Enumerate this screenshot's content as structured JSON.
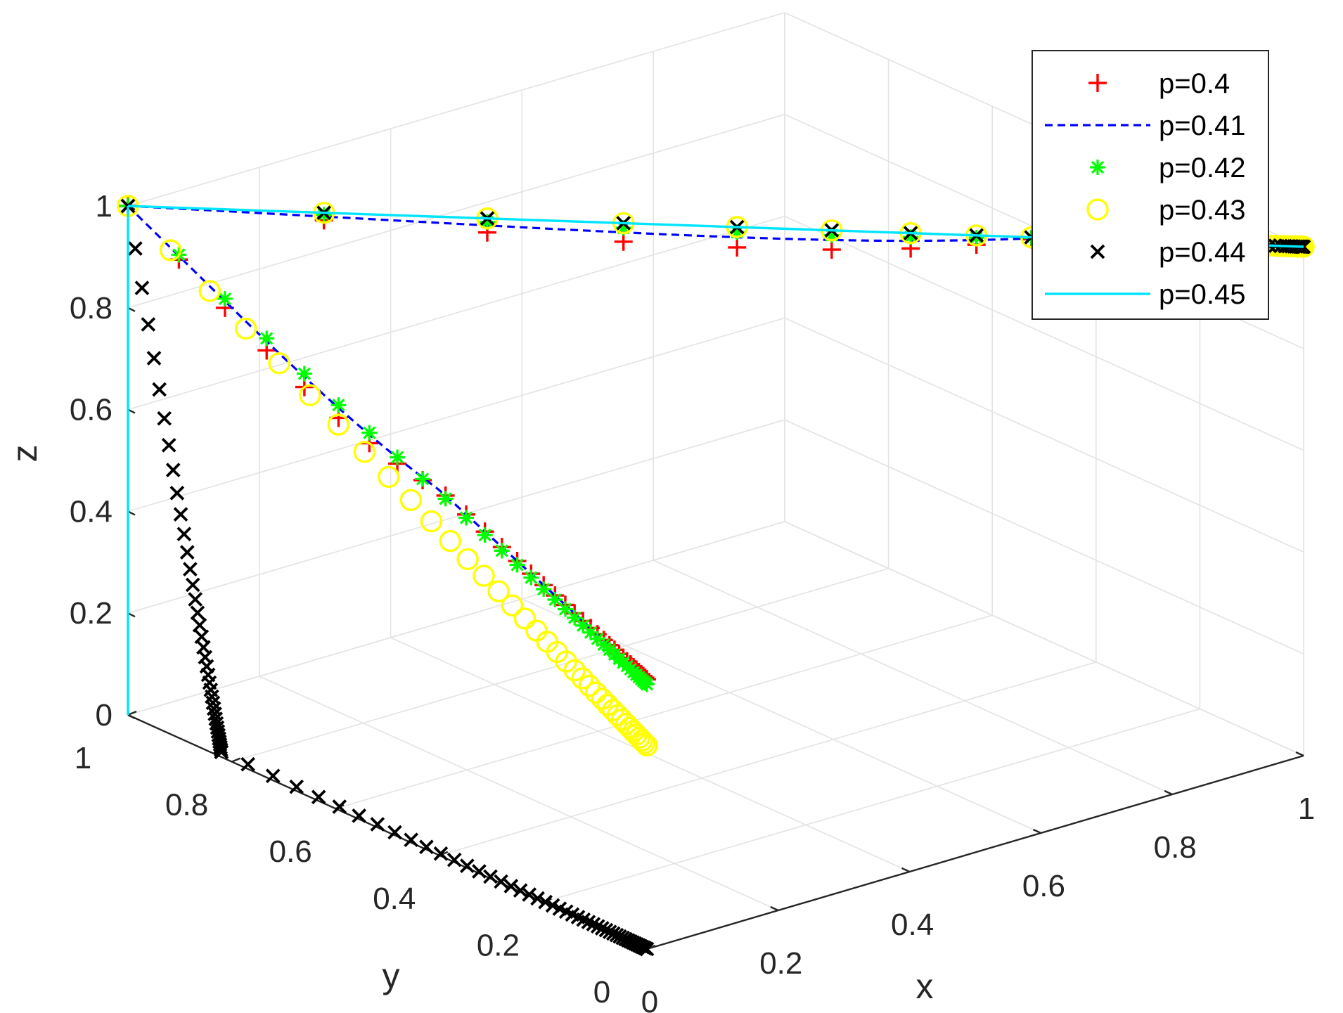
{
  "chart_data": {
    "type": "line3d",
    "title": "",
    "xlabel": "x",
    "ylabel": "y",
    "zlabel": "z",
    "xlim": [
      0,
      1
    ],
    "ylim": [
      0,
      1
    ],
    "zlim": [
      0,
      1
    ],
    "xticks": [
      {
        "v": 0,
        "label": "0"
      },
      {
        "v": 0.2,
        "label": "0.2"
      },
      {
        "v": 0.4,
        "label": "0.4"
      },
      {
        "v": 0.6,
        "label": "0.6"
      },
      {
        "v": 0.8,
        "label": "0.8"
      },
      {
        "v": 1,
        "label": "1"
      }
    ],
    "yticks": [
      {
        "v": 0,
        "label": "0"
      },
      {
        "v": 0.2,
        "label": "0.2"
      },
      {
        "v": 0.4,
        "label": "0.4"
      },
      {
        "v": 0.6,
        "label": "0.6"
      },
      {
        "v": 0.8,
        "label": "0.8"
      },
      {
        "v": 1,
        "label": "1"
      }
    ],
    "zticks": [
      {
        "v": 0,
        "label": "0"
      },
      {
        "v": 0.2,
        "label": "0.2"
      },
      {
        "v": 0.4,
        "label": "0.4"
      },
      {
        "v": 0.6,
        "label": "0.6"
      },
      {
        "v": 0.8,
        "label": "0.8"
      },
      {
        "v": 1,
        "label": "1"
      }
    ],
    "grid": true,
    "legend_position": "top-right",
    "series": [
      {
        "name": "p=0.4",
        "color": "#ff0000",
        "marker": "plus",
        "line": "none",
        "paths": [
          {
            "start": [
              0,
              1,
              1
            ],
            "end": [
              1,
              0,
              1
            ],
            "n": 34,
            "k": 6,
            "dip": 0.04
          },
          {
            "start": [
              0,
              1,
              1
            ],
            "end": [
              0,
              0,
              0.53
            ],
            "n": 36,
            "k": 3.5,
            "dip": 0.04
          }
        ]
      },
      {
        "name": "p=0.41",
        "color": "#0000ff",
        "marker": "none",
        "line": "dashed",
        "paths": [
          {
            "start": [
              0,
              1,
              1
            ],
            "end": [
              1,
              0,
              1
            ],
            "n": 90,
            "k": 6,
            "dip": 0.02
          },
          {
            "start": [
              0,
              1,
              1
            ],
            "end": [
              0,
              0,
              0.53
            ],
            "n": 90,
            "k": 3.5,
            "dip": 0.02
          }
        ]
      },
      {
        "name": "p=0.42",
        "color": "#00ff00",
        "marker": "asterisk",
        "line": "none",
        "paths": [
          {
            "start": [
              0,
              1,
              1
            ],
            "end": [
              1,
              0,
              1
            ],
            "n": 34,
            "k": 6,
            "dip": 0.01
          },
          {
            "start": [
              0,
              1,
              1
            ],
            "end": [
              0,
              0,
              0.52
            ],
            "n": 36,
            "k": 3.5,
            "dip": 0.01
          }
        ]
      },
      {
        "name": "p=0.43",
        "color": "#ffff00",
        "marker": "circle",
        "line": "none",
        "paths": [
          {
            "start": [
              0,
              1,
              1
            ],
            "end": [
              1,
              0,
              1
            ],
            "n": 34,
            "k": 6,
            "dip": 0
          },
          {
            "start": [
              0,
              1,
              1
            ],
            "end": [
              0,
              0,
              0.4
            ],
            "n": 38,
            "k": 3,
            "dip": 0
          }
        ]
      },
      {
        "name": "p=0.44",
        "color": "#000000",
        "marker": "x",
        "line": "none",
        "paths": [
          {
            "start": [
              0,
              1,
              1
            ],
            "end": [
              1,
              0,
              1
            ],
            "n": 34,
            "k": 6,
            "dip": 0
          },
          {
            "start": [
              0,
              1,
              1
            ],
            "end": [
              0,
              0.82,
              0.01
            ],
            "n": 40,
            "k": 3,
            "dip": 0
          },
          {
            "start": [
              0,
              0.82,
              0.01
            ],
            "end": [
              0,
              0,
              0
            ],
            "n": 50,
            "k": 3,
            "dip": 0
          }
        ]
      },
      {
        "name": "p=0.45",
        "color": "#00e5ff",
        "marker": "none",
        "line": "solid",
        "paths": [
          {
            "start": [
              0,
              1,
              1
            ],
            "end": [
              1,
              0,
              1
            ],
            "n": 2,
            "k": 0,
            "dip": 0
          },
          {
            "start": [
              0,
              1,
              1
            ],
            "end": [
              0,
              1,
              0
            ],
            "n": 2,
            "k": 0,
            "dip": 0
          }
        ]
      }
    ]
  }
}
